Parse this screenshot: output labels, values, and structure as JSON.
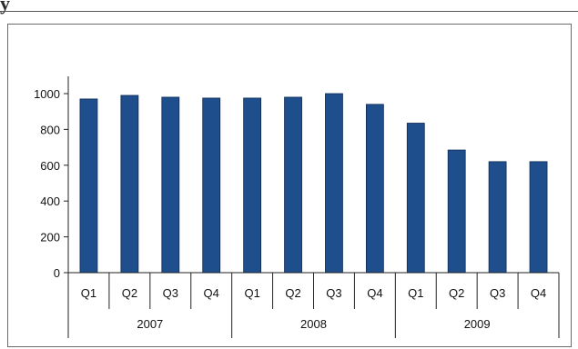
{
  "header_fragment": "y",
  "chart_data": {
    "type": "bar",
    "title": "",
    "xlabel": "",
    "ylabel": "",
    "ylim": [
      0,
      1000
    ],
    "yticks": [
      0,
      200,
      400,
      600,
      800,
      1000
    ],
    "grid": false,
    "legend": "none",
    "bar_color": "#1f4e8c",
    "categories": [
      "Q1",
      "Q2",
      "Q3",
      "Q4",
      "Q1",
      "Q2",
      "Q3",
      "Q4",
      "Q1",
      "Q2",
      "Q3",
      "Q4"
    ],
    "groups": [
      "2007",
      "2008",
      "2009"
    ],
    "values": [
      970,
      990,
      980,
      975,
      975,
      980,
      1000,
      940,
      835,
      685,
      620,
      620
    ]
  }
}
